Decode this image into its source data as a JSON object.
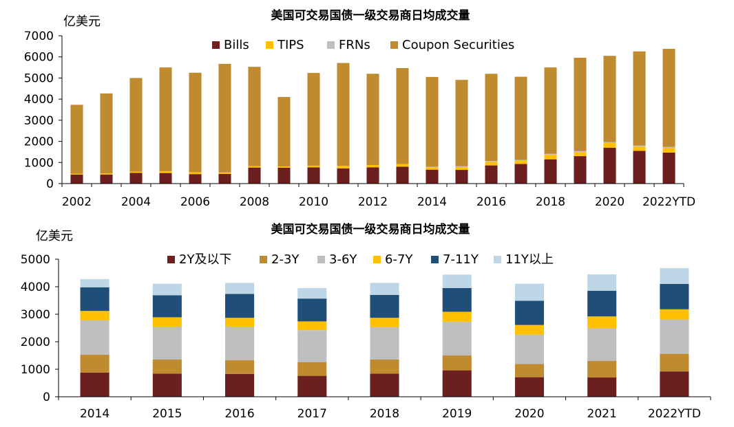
{
  "chart_data": [
    {
      "type": "bar",
      "stacked": true,
      "title": "美国可交易国债一级交易商日均成交量",
      "ylabel": "亿美元",
      "ylim": [
        0,
        7000
      ],
      "yticks": [
        0,
        1000,
        2000,
        3000,
        4000,
        5000,
        6000,
        7000
      ],
      "grid": false,
      "legend": "top",
      "categories": [
        "2002",
        "2003",
        "2004",
        "2005",
        "2006",
        "2007",
        "2008",
        "2009",
        "2010",
        "2011",
        "2012",
        "2013",
        "2014",
        "2015",
        "2016",
        "2017",
        "2018",
        "2019",
        "2020",
        "2021",
        "2022YTD"
      ],
      "xtick_labels": [
        "2002",
        "",
        "2004",
        "",
        "2006",
        "",
        "2008",
        "",
        "2010",
        "",
        "2012",
        "",
        "2014",
        "",
        "2016",
        "",
        "2018",
        "",
        "2020",
        "",
        "2022YTD"
      ],
      "series": [
        {
          "name": "Bills",
          "color": "#6B1F1F",
          "values": [
            430,
            430,
            510,
            500,
            450,
            460,
            760,
            750,
            770,
            720,
            770,
            800,
            660,
            650,
            860,
            930,
            1150,
            1300,
            1700,
            1550,
            1470
          ]
        },
        {
          "name": "TIPS",
          "color": "#FFC000",
          "values": [
            40,
            50,
            60,
            90,
            90,
            70,
            70,
            60,
            80,
            120,
            110,
            130,
            110,
            130,
            170,
            150,
            220,
            200,
            220,
            200,
            220
          ]
        },
        {
          "name": "FRNs",
          "color": "#BFBFBF",
          "values": [
            0,
            0,
            0,
            0,
            0,
            0,
            0,
            0,
            0,
            0,
            0,
            0,
            30,
            40,
            40,
            40,
            40,
            40,
            50,
            50,
            50
          ]
        },
        {
          "name": "Coupon Securities",
          "color": "#C08A2E",
          "values": [
            3260,
            3790,
            4430,
            4910,
            4710,
            5140,
            4700,
            3290,
            4390,
            4870,
            4320,
            4540,
            4250,
            4090,
            4130,
            3940,
            4090,
            4420,
            4080,
            4460,
            4640
          ]
        }
      ]
    },
    {
      "type": "bar",
      "stacked": true,
      "title": "美国可交易国债一级交易商日均成交量",
      "ylabel": "亿美元",
      "ylim": [
        0,
        5000
      ],
      "yticks": [
        0,
        1000,
        2000,
        3000,
        4000,
        5000
      ],
      "grid": false,
      "legend": "top",
      "categories": [
        "2014",
        "2015",
        "2016",
        "2017",
        "2018",
        "2019",
        "2020",
        "2021",
        "2022YTD"
      ],
      "series": [
        {
          "name": "2Y及以下",
          "color": "#6B1F1F",
          "values": [
            880,
            840,
            830,
            760,
            840,
            960,
            710,
            700,
            920
          ]
        },
        {
          "name": "2-3Y",
          "color": "#C08A2E",
          "values": [
            650,
            510,
            500,
            500,
            510,
            540,
            480,
            600,
            640
          ]
        },
        {
          "name": "3-6Y",
          "color": "#BFBFBF",
          "values": [
            1250,
            1200,
            1220,
            1160,
            1180,
            1220,
            1070,
            1190,
            1250
          ]
        },
        {
          "name": "6-7Y",
          "color": "#FFC000",
          "values": [
            340,
            340,
            320,
            320,
            340,
            370,
            350,
            430,
            370
          ]
        },
        {
          "name": "7-11Y",
          "color": "#1F4E79",
          "values": [
            860,
            800,
            870,
            830,
            830,
            860,
            880,
            930,
            920
          ]
        },
        {
          "name": "11Y以上",
          "color": "#BDD7E7",
          "values": [
            300,
            420,
            400,
            380,
            440,
            490,
            620,
            600,
            580
          ]
        }
      ]
    }
  ]
}
